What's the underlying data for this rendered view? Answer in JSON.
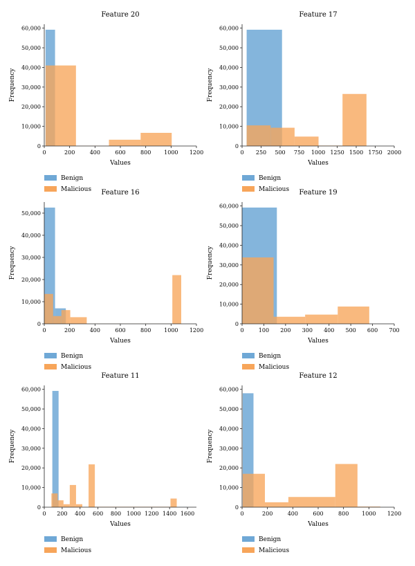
{
  "chart_data": [
    {
      "type": "histogram",
      "title": "Feature 20",
      "xlabel": "Values",
      "ylabel": "Frequency",
      "xlim": [
        0,
        1200
      ],
      "ylim": [
        0,
        62000
      ],
      "xticks": [
        0,
        200,
        400,
        600,
        800,
        1000,
        1200
      ],
      "xtick_labels": [
        "0",
        "200",
        "400",
        "600",
        "800",
        "1000",
        "1200"
      ],
      "yticks": [
        0,
        10000,
        20000,
        30000,
        40000,
        50000,
        60000
      ],
      "ytick_labels": [
        "0",
        "10,000",
        "20,000",
        "30,000",
        "40,000",
        "50,000",
        "60,000"
      ],
      "series": [
        {
          "name": "Benign",
          "color": "#6fa8d6",
          "bins": [
            {
              "x0": 10,
              "x1": 85,
              "y": 59200
            }
          ]
        },
        {
          "name": "Malicious",
          "color": "#f7a55a",
          "bins": [
            {
              "x0": 10,
              "x1": 250,
              "y": 41000
            },
            {
              "x0": 250,
              "x1": 510,
              "y": 100
            },
            {
              "x0": 510,
              "x1": 760,
              "y": 3200
            },
            {
              "x0": 760,
              "x1": 1005,
              "y": 6700
            }
          ]
        }
      ]
    },
    {
      "type": "histogram",
      "title": "Feature 17",
      "xlabel": "Values",
      "ylabel": "Frequency",
      "xlim": [
        0,
        2000
      ],
      "ylim": [
        0,
        62000
      ],
      "xticks": [
        0,
        250,
        500,
        750,
        1000,
        1250,
        1500,
        1750,
        2000
      ],
      "xtick_labels": [
        "0",
        "250",
        "500",
        "750",
        "1000",
        "1250",
        "1500",
        "1750",
        "2000"
      ],
      "yticks": [
        0,
        10000,
        20000,
        30000,
        40000,
        50000,
        60000
      ],
      "ytick_labels": [
        "0",
        "10,000",
        "20,000",
        "30,000",
        "40,000",
        "50,000",
        "60,000"
      ],
      "series": [
        {
          "name": "Benign",
          "color": "#6fa8d6",
          "bins": [
            {
              "x0": 60,
              "x1": 525,
              "y": 59200
            }
          ]
        },
        {
          "name": "Malicious",
          "color": "#f7a55a",
          "bins": [
            {
              "x0": 60,
              "x1": 375,
              "y": 10500
            },
            {
              "x0": 375,
              "x1": 690,
              "y": 9300
            },
            {
              "x0": 690,
              "x1": 1005,
              "y": 4800
            },
            {
              "x0": 1005,
              "x1": 1320,
              "y": 200
            },
            {
              "x0": 1320,
              "x1": 1635,
              "y": 26500
            }
          ]
        }
      ]
    },
    {
      "type": "histogram",
      "title": "Feature 16",
      "xlabel": "Values",
      "ylabel": "Frequency",
      "xlim": [
        0,
        1200
      ],
      "ylim": [
        0,
        55000
      ],
      "xticks": [
        0,
        200,
        400,
        600,
        800,
        1000,
        1200
      ],
      "xtick_labels": [
        "0",
        "200",
        "400",
        "600",
        "800",
        "1000",
        "1200"
      ],
      "yticks": [
        0,
        10000,
        20000,
        30000,
        40000,
        50000
      ],
      "ytick_labels": [
        "0",
        "10,000",
        "20,000",
        "30,000",
        "40,000",
        "50,000"
      ],
      "series": [
        {
          "name": "Benign",
          "color": "#6fa8d6",
          "bins": [
            {
              "x0": 0,
              "x1": 85,
              "y": 52500
            },
            {
              "x0": 85,
              "x1": 170,
              "y": 7000
            }
          ]
        },
        {
          "name": "Malicious",
          "color": "#f7a55a",
          "bins": [
            {
              "x0": 0,
              "x1": 70,
              "y": 13500
            },
            {
              "x0": 70,
              "x1": 135,
              "y": 3500
            },
            {
              "x0": 135,
              "x1": 205,
              "y": 6200
            },
            {
              "x0": 205,
              "x1": 335,
              "y": 3000
            },
            {
              "x0": 335,
              "x1": 1010,
              "y": 50
            },
            {
              "x0": 1010,
              "x1": 1080,
              "y": 22000
            }
          ]
        }
      ]
    },
    {
      "type": "histogram",
      "title": "Feature 19",
      "xlabel": "Values",
      "ylabel": "Frequency",
      "xlim": [
        0,
        700
      ],
      "ylim": [
        0,
        62000
      ],
      "xticks": [
        0,
        100,
        200,
        300,
        400,
        500,
        600,
        700
      ],
      "xtick_labels": [
        "0",
        "100",
        "200",
        "300",
        "400",
        "500",
        "600",
        "700"
      ],
      "yticks": [
        0,
        10000,
        20000,
        30000,
        40000,
        50000,
        60000
      ],
      "ytick_labels": [
        "0",
        "10,000",
        "20,000",
        "30,000",
        "40,000",
        "50,000",
        "60,000"
      ],
      "series": [
        {
          "name": "Benign",
          "color": "#6fa8d6",
          "bins": [
            {
              "x0": 0,
              "x1": 160,
              "y": 59200
            }
          ]
        },
        {
          "name": "Malicious",
          "color": "#f7a55a",
          "bins": [
            {
              "x0": 0,
              "x1": 145,
              "y": 33800
            },
            {
              "x0": 145,
              "x1": 290,
              "y": 3600
            },
            {
              "x0": 290,
              "x1": 440,
              "y": 4700
            },
            {
              "x0": 440,
              "x1": 585,
              "y": 8800
            }
          ]
        }
      ]
    },
    {
      "type": "histogram",
      "title": "Feature 11",
      "xlabel": "Values",
      "ylabel": "Frequency",
      "xlim": [
        0,
        1700
      ],
      "ylim": [
        0,
        62000
      ],
      "xticks": [
        0,
        200,
        400,
        600,
        800,
        1000,
        1200,
        1400,
        1600
      ],
      "xtick_labels": [
        "0",
        "200",
        "400",
        "600",
        "800",
        "1000",
        "1200",
        "1400",
        "1600"
      ],
      "yticks": [
        0,
        10000,
        20000,
        30000,
        40000,
        50000,
        60000
      ],
      "ytick_labels": [
        "0",
        "10,000",
        "20,000",
        "30,000",
        "40,000",
        "50,000",
        "60,000"
      ],
      "series": [
        {
          "name": "Benign",
          "color": "#6fa8d6",
          "bins": [
            {
              "x0": 90,
              "x1": 160,
              "y": 59200
            },
            {
              "x0": 160,
              "x1": 1600,
              "y": 100
            }
          ]
        },
        {
          "name": "Malicious",
          "color": "#f7a55a",
          "bins": [
            {
              "x0": 80,
              "x1": 150,
              "y": 7000
            },
            {
              "x0": 150,
              "x1": 215,
              "y": 3500
            },
            {
              "x0": 215,
              "x1": 285,
              "y": 1500
            },
            {
              "x0": 285,
              "x1": 355,
              "y": 11300
            },
            {
              "x0": 355,
              "x1": 425,
              "y": 1500
            },
            {
              "x0": 425,
              "x1": 495,
              "y": 100
            },
            {
              "x0": 495,
              "x1": 565,
              "y": 21800
            },
            {
              "x0": 565,
              "x1": 1410,
              "y": 200
            },
            {
              "x0": 1410,
              "x1": 1480,
              "y": 4400
            }
          ]
        }
      ]
    },
    {
      "type": "histogram",
      "title": "Feature 12",
      "xlabel": "Values",
      "ylabel": "Frequency",
      "xlim": [
        0,
        1200
      ],
      "ylim": [
        0,
        62000
      ],
      "xticks": [
        0,
        200,
        400,
        600,
        800,
        1000,
        1200
      ],
      "xtick_labels": [
        "0",
        "200",
        "400",
        "600",
        "800",
        "1000",
        "1200"
      ],
      "yticks": [
        0,
        10000,
        20000,
        30000,
        40000,
        50000,
        60000
      ],
      "ytick_labels": [
        "0",
        "10,000",
        "20,000",
        "30,000",
        "40,000",
        "50,000",
        "60,000"
      ],
      "series": [
        {
          "name": "Benign",
          "color": "#6fa8d6",
          "bins": [
            {
              "x0": 5,
              "x1": 90,
              "y": 58000
            }
          ]
        },
        {
          "name": "Malicious",
          "color": "#f7a55a",
          "bins": [
            {
              "x0": 5,
              "x1": 180,
              "y": 17000
            },
            {
              "x0": 180,
              "x1": 365,
              "y": 2500
            },
            {
              "x0": 365,
              "x1": 735,
              "y": 5200
            },
            {
              "x0": 735,
              "x1": 910,
              "y": 22000
            },
            {
              "x0": 910,
              "x1": 1090,
              "y": 300
            }
          ]
        }
      ]
    }
  ]
}
